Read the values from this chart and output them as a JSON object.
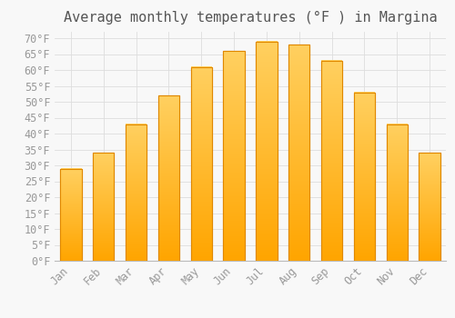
{
  "title": "Average monthly temperatures (°F ) in Margina",
  "months": [
    "Jan",
    "Feb",
    "Mar",
    "Apr",
    "May",
    "Jun",
    "Jul",
    "Aug",
    "Sep",
    "Oct",
    "Nov",
    "Dec"
  ],
  "values": [
    29,
    34,
    43,
    52,
    61,
    66,
    69,
    68,
    63,
    53,
    43,
    34
  ],
  "bar_color_top": "#FFD060",
  "bar_color_bottom": "#FFA500",
  "bar_edge_color": "#E08800",
  "background_color": "#F8F8F8",
  "plot_bg_color": "#F8F8F8",
  "grid_color": "#DDDDDD",
  "tick_label_color": "#999999",
  "title_color": "#555555",
  "ylim": [
    0,
    72
  ],
  "yticks": [
    0,
    5,
    10,
    15,
    20,
    25,
    30,
    35,
    40,
    45,
    50,
    55,
    60,
    65,
    70
  ],
  "title_fontsize": 11,
  "tick_fontsize": 8.5
}
